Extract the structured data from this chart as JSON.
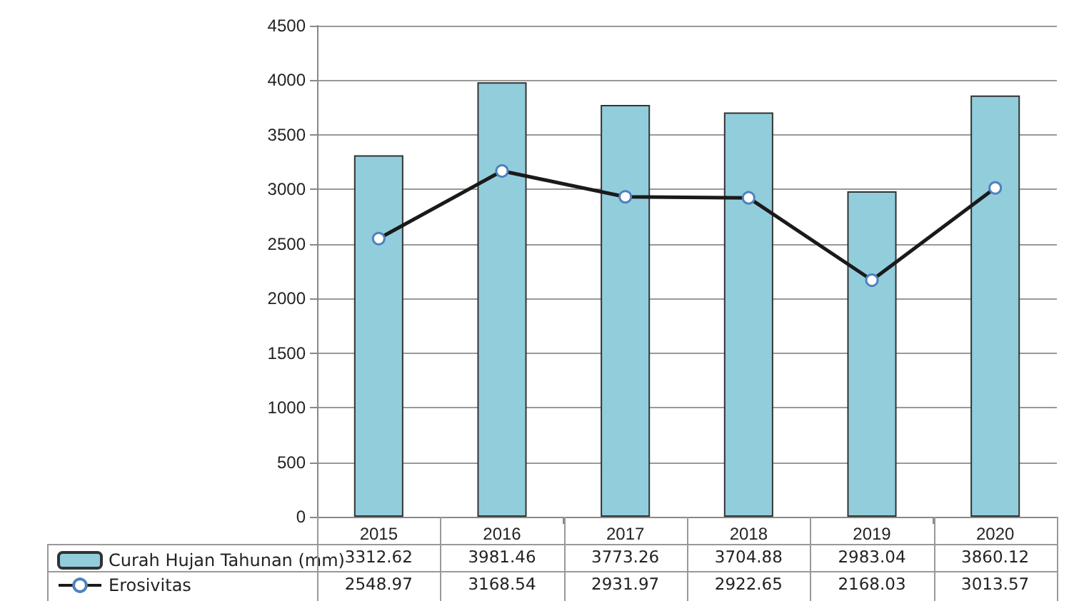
{
  "chart_data": {
    "type": "bar",
    "categories": [
      "2015",
      "2016",
      "2017",
      "2018",
      "2019",
      "2020"
    ],
    "series": [
      {
        "name": "Curah Hujan Tahunan (mm)",
        "color": "#92cddc",
        "values": [
          3312.62,
          3981.46,
          3773.26,
          3704.88,
          2983.04,
          3860.12
        ]
      },
      {
        "name": "Erosivitas",
        "type": "line",
        "color": "#1a1a1a",
        "values": [
          2548.97,
          3168.54,
          2931.97,
          2922.65,
          2168.03,
          3013.57
        ]
      }
    ],
    "ylim": [
      0,
      4500
    ],
    "yticks": [
      0,
      500,
      1000,
      1500,
      2000,
      2500,
      3000,
      3500,
      4000,
      4500
    ],
    "grid": "y",
    "legend": "bottom left",
    "marker": "circle",
    "line_style": "solid",
    "data_labels": true
  }
}
